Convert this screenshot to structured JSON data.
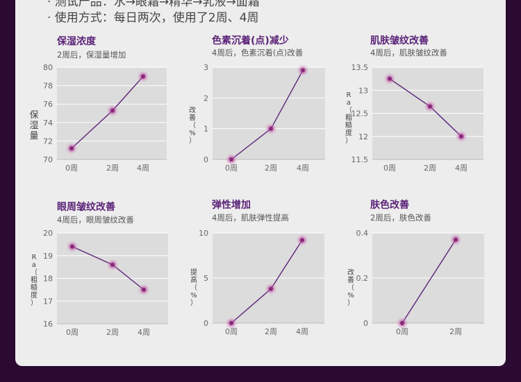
{
  "header": {
    "line1": "· 测试产品：水→眼霜→精华→乳液→面霜",
    "line2": "· 使用方式：每日两次，使用了2周、4周"
  },
  "colors": {
    "background": "#2a0a30",
    "panel": "#eeeded",
    "plot": "#dcdcdc",
    "title": "#5a2378",
    "line": "#5a2378",
    "marker": "#8a2a7a",
    "text": "#555555"
  },
  "chart_data": [
    {
      "type": "line",
      "title": "保湿浓度",
      "subtitle": "2周后，保湿量增加",
      "ylabel": "保湿量",
      "categories": [
        "0周",
        "2周",
        "4周"
      ],
      "values": [
        71.2,
        75.3,
        79.0
      ],
      "ylim": [
        70,
        80
      ],
      "yticks": [
        70,
        72,
        74,
        76,
        78,
        80
      ],
      "ytick_labels": [
        "70",
        "72",
        "74",
        "76",
        "78",
        "80"
      ],
      "grid": true
    },
    {
      "type": "line",
      "title": "色素沉着(点)减少",
      "subtitle": "4周后，色素沉着(点)改善",
      "ylabel": "改善（%）",
      "categories": [
        "0周",
        "2周",
        "4周"
      ],
      "values": [
        0,
        1.0,
        2.9
      ],
      "ylim": [
        0,
        3
      ],
      "yticks": [
        0,
        1,
        2,
        3
      ],
      "ytick_labels": [
        "0",
        "1",
        "2",
        "3"
      ],
      "grid": true
    },
    {
      "type": "line",
      "title": "肌肤皱纹改善",
      "subtitle": "4周后，肌肤皱纹改善",
      "ylabel": "Ra（粗糙度）",
      "categories": [
        "0周",
        "2周",
        "4周"
      ],
      "values": [
        13.25,
        12.65,
        12.0
      ],
      "ylim": [
        11.5,
        13.5
      ],
      "yticks": [
        11.5,
        12,
        12.5,
        13,
        13.5
      ],
      "ytick_labels": [
        "11.5",
        "12",
        "12.5",
        "13",
        "13.5"
      ],
      "grid": true
    },
    {
      "type": "line",
      "title": "眼周皱纹改善",
      "subtitle": "4周后，眼周皱纹改善",
      "ylabel": "Ra（粗糙度）",
      "categories": [
        "0周",
        "2周",
        "4周"
      ],
      "values": [
        19.4,
        18.6,
        17.5
      ],
      "ylim": [
        16,
        20
      ],
      "yticks": [
        16,
        17,
        18,
        19,
        20
      ],
      "ytick_labels": [
        "16",
        "17",
        "18",
        "19",
        "20"
      ],
      "grid": true
    },
    {
      "type": "line",
      "title": "弹性增加",
      "subtitle": "4周后，肌肤弹性提高",
      "ylabel": "提高（%）",
      "categories": [
        "0周",
        "2周",
        "4周"
      ],
      "values": [
        0,
        3.8,
        9.2
      ],
      "ylim": [
        0,
        10
      ],
      "yticks": [
        0,
        5,
        10
      ],
      "ytick_labels": [
        "0",
        "5",
        "10"
      ],
      "grid": true
    },
    {
      "type": "line",
      "title": "肤色改善",
      "subtitle": "2周后，肤色改善",
      "ylabel": "改善（%）",
      "categories": [
        "0周",
        "2周"
      ],
      "values": [
        0,
        0.37
      ],
      "ylim": [
        0,
        0.4
      ],
      "yticks": [
        0,
        0.2,
        0.4
      ],
      "ytick_labels": [
        "0",
        "0.2",
        "0.4"
      ],
      "grid": true
    }
  ]
}
